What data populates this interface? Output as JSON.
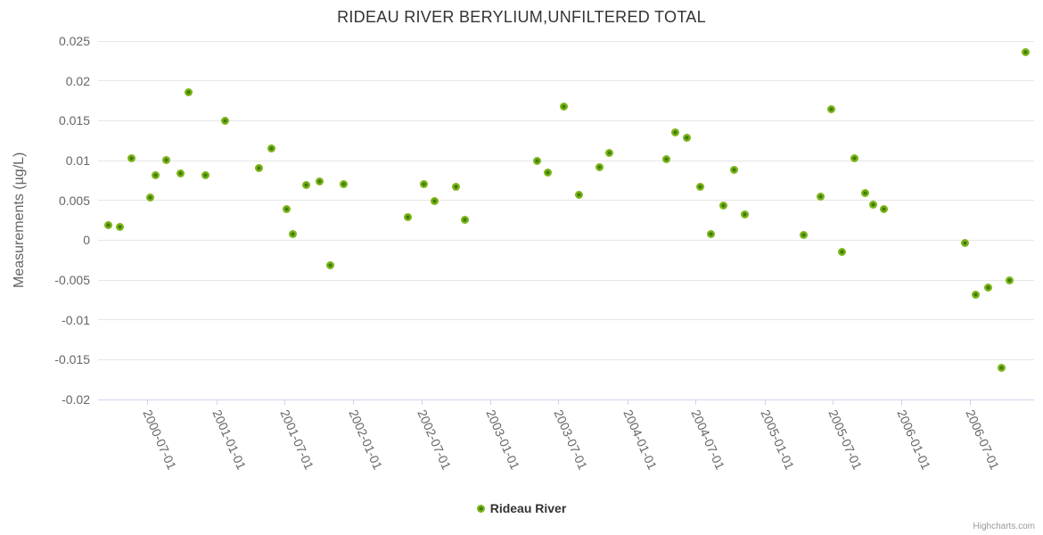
{
  "title": "RIDEAU RIVER BERYLIUM,UNFILTERED TOTAL",
  "credits": "Highcharts.com",
  "legend": {
    "label": "Rideau River"
  },
  "colors": {
    "point_outer": "#7cb51a",
    "point_inner": "#3e7c04",
    "grid": "#e6e6e6",
    "axis_line": "#ccd6eb",
    "title_text": "#333333",
    "label_text": "#666666",
    "credits_text": "#999999"
  },
  "chart_data": {
    "type": "scatter",
    "title": "RIDEAU RIVER BERYLIUM,UNFILTERED TOTAL",
    "xlabel": "",
    "ylabel": "Measurements (µg/L)",
    "ylim": [
      -0.02,
      0.025
    ],
    "grid": "horizontal-only",
    "legend_position": "bottom-center",
    "y_ticks": [
      0.025,
      0.02,
      0.015,
      0.01,
      0.005,
      0,
      -0.005,
      -0.01,
      -0.015,
      -0.02
    ],
    "x_ticks": [
      "2000-07-01",
      "2001-01-01",
      "2001-07-01",
      "2002-01-01",
      "2002-07-01",
      "2003-01-01",
      "2003-07-01",
      "2004-01-01",
      "2004-07-01",
      "2005-01-01",
      "2005-07-01",
      "2006-01-01",
      "2006-07-01"
    ],
    "series": [
      {
        "name": "Rideau River",
        "points": [
          [
            "2000-03-18",
            0.0019
          ],
          [
            "2000-04-19",
            0.0017
          ],
          [
            "2000-05-20",
            0.0103
          ],
          [
            "2000-07-08",
            0.0053
          ],
          [
            "2000-07-22",
            0.0082
          ],
          [
            "2000-08-20",
            0.0101
          ],
          [
            "2000-09-27",
            0.0084
          ],
          [
            "2000-10-18",
            0.0186
          ],
          [
            "2000-12-03",
            0.0082
          ],
          [
            "2001-01-25",
            0.015
          ],
          [
            "2001-04-24",
            0.009
          ],
          [
            "2001-05-28",
            0.0115
          ],
          [
            "2001-07-07",
            0.0039
          ],
          [
            "2001-07-23",
            0.0008
          ],
          [
            "2001-08-29",
            0.0069
          ],
          [
            "2001-10-03",
            0.0074
          ],
          [
            "2001-11-01",
            -0.0031
          ],
          [
            "2001-12-05",
            0.007
          ],
          [
            "2002-05-26",
            0.0029
          ],
          [
            "2002-07-09",
            0.007
          ],
          [
            "2002-08-06",
            0.0049
          ],
          [
            "2002-10-02",
            0.0067
          ],
          [
            "2002-10-24",
            0.0026
          ],
          [
            "2003-05-06",
            0.01
          ],
          [
            "2003-06-04",
            0.0085
          ],
          [
            "2003-07-16",
            0.0168
          ],
          [
            "2003-08-26",
            0.0057
          ],
          [
            "2003-10-20",
            0.0092
          ],
          [
            "2003-11-13",
            0.0109
          ],
          [
            "2004-04-14",
            0.0102
          ],
          [
            "2004-05-07",
            0.0135
          ],
          [
            "2004-06-08",
            0.0128
          ],
          [
            "2004-07-13",
            0.0067
          ],
          [
            "2004-08-11",
            0.0008
          ],
          [
            "2004-09-14",
            0.0044
          ],
          [
            "2004-10-12",
            0.0088
          ],
          [
            "2004-11-10",
            0.0032
          ],
          [
            "2005-04-15",
            0.0007
          ],
          [
            "2005-05-30",
            0.0055
          ],
          [
            "2005-06-27",
            0.0164
          ],
          [
            "2005-07-26",
            -0.0015
          ],
          [
            "2005-08-28",
            0.0103
          ],
          [
            "2005-09-26",
            0.0059
          ],
          [
            "2005-10-18",
            0.0045
          ],
          [
            "2005-11-16",
            0.0039
          ],
          [
            "2006-06-19",
            -0.0004
          ],
          [
            "2006-07-17",
            -0.0069
          ],
          [
            "2006-08-20",
            -0.006
          ],
          [
            "2006-09-25",
            -0.016
          ],
          [
            "2006-10-16",
            -0.005
          ],
          [
            "2006-11-28",
            0.0236
          ]
        ]
      }
    ]
  }
}
